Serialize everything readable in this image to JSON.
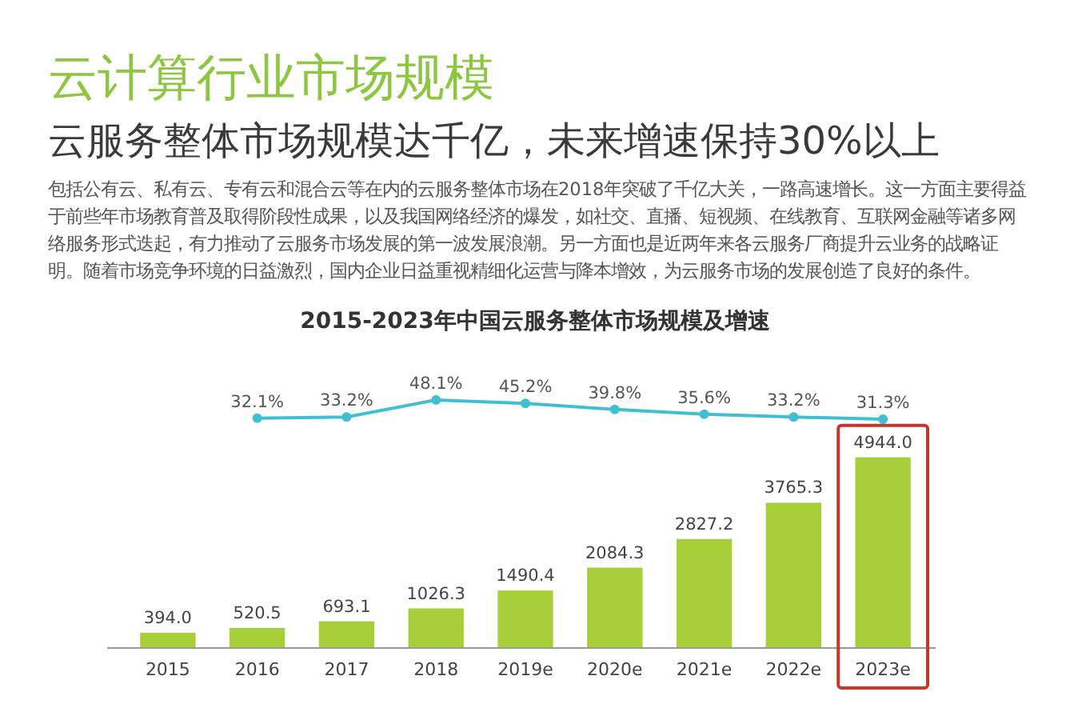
{
  "chart_data": [
    {
      "type": "line",
      "title": "2015-2023年中国云服务整体市场规模及增速",
      "annotations": [
        "云计算行业市场规模",
        "云服务整体市场规模达千亿，未来增速保持30%以上",
        "包括公有云、私有云、专有云和混合云等在内的云服务整体市场在2018年突破了千亿大关，一路高速增长。这一方面主要得益于前些年市场教育普及取得阶段性成果，以及我国网络经济的爆发，如社交、直播、短视频、在线教育、互联网金融等诸多网络服务形式迭起，有力推动了云服务市场发展的第一波发展浪潮。另一方面也是近两年来各云服务厂商提升云业务的战略证明。随着市场竞争环境的日益激烈，国内企业日益重视精细化运营与降本增效，为云服务市场的发展创造了良好的条件。"
      ],
      "categories": [
        null,
        null,
        null,
        null,
        null,
        null,
        null,
        null,
        null
      ],
      "series": [
        {
          "color": "#3fbfd0",
          "values": [
            null,
            32.1,
            33.2,
            48.1,
            45.2,
            39.8,
            35.6,
            33.2,
            31.3
          ],
          "value_labels": [
            null,
            "32.1%",
            "33.2%",
            "48.1%",
            "45.2%",
            "39.8%",
            "35.6%",
            "33.2%",
            "31.3%"
          ]
        }
      ],
      "marker": "circle"
    },
    {
      "type": "bar",
      "categories": [
        "2015",
        "2016",
        "2017",
        "2018",
        "2019e",
        "2020e",
        "2021e",
        "2022e",
        "2023e"
      ],
      "series": [
        {
          "color": "#a6cf3a",
          "values": [
            394.0,
            520.5,
            693.1,
            1026.3,
            1490.4,
            2084.3,
            2827.2,
            3765.3,
            4944.0
          ],
          "value_labels": [
            "394.0",
            "520.5",
            "693.1",
            "1026.3",
            "1490.4",
            "2084.3",
            "2827.2",
            "3765.3",
            "4944.0"
          ]
        }
      ]
    }
  ]
}
